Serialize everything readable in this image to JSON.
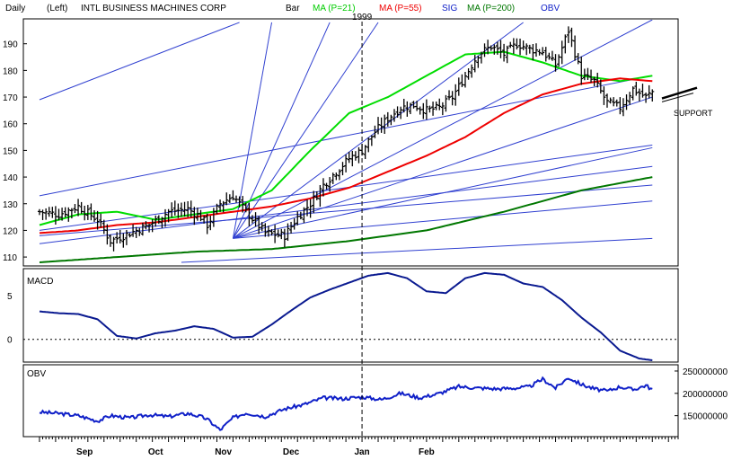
{
  "header": {
    "period": "Daily",
    "scale": "(Left)",
    "security": "INTL BUSINESS MACHINES CORP",
    "chart_style": "Bar",
    "ma21": "MA (P=21)",
    "ma55": "MA (P=55)",
    "sig": "SIG",
    "ma200": "MA (P=200)",
    "obv": "OBV"
  },
  "colors": {
    "ma21": "#00dd00",
    "ma55": "#ee0000",
    "ma200": "#007700",
    "blue": "#1020c8",
    "fan": "#3040d0",
    "bars": "#000000"
  },
  "annotations": {
    "year": "1999",
    "support": "SUPPORT"
  },
  "chart_data": [
    {
      "type": "bar",
      "title": "",
      "ylim": [
        107,
        199
      ],
      "yticks": [
        "110",
        "120",
        "130",
        "140",
        "150",
        "160",
        "170",
        "180",
        "190"
      ],
      "ytick_values": [
        110,
        120,
        130,
        140,
        150,
        160,
        170,
        180,
        190
      ],
      "series": [
        {
          "name": "MA (P=21)",
          "x": [
            0,
            12,
            24,
            36,
            48,
            60,
            72,
            84,
            96,
            108,
            120,
            132,
            144,
            156,
            168,
            180,
            190
          ],
          "values": [
            122,
            126,
            127,
            124,
            126,
            128,
            135,
            150,
            164,
            170,
            178,
            186,
            187,
            183,
            178,
            176,
            178
          ]
        },
        {
          "name": "MA (P=55)",
          "x": [
            0,
            12,
            24,
            36,
            48,
            60,
            72,
            84,
            96,
            108,
            120,
            132,
            144,
            156,
            168,
            180,
            190
          ],
          "values": [
            119,
            120,
            122,
            123,
            125,
            127,
            129,
            132,
            136,
            142,
            148,
            155,
            164,
            171,
            175,
            177,
            176
          ]
        },
        {
          "name": "MA (P=200)",
          "x": [
            0,
            24,
            48,
            72,
            96,
            120,
            144,
            168,
            190
          ],
          "values": [
            108,
            110,
            112,
            113,
            116,
            120,
            127,
            135,
            140
          ]
        }
      ],
      "price_anchors": {
        "x": [
          0,
          6,
          12,
          18,
          22,
          28,
          34,
          40,
          46,
          50,
          52,
          56,
          60,
          64,
          70,
          76,
          80,
          84,
          88,
          92,
          96,
          100,
          104,
          108,
          112,
          116,
          120,
          124,
          128,
          132,
          136,
          140,
          144,
          148,
          152,
          156,
          160,
          164,
          168,
          172,
          176,
          180,
          184,
          188,
          190
        ],
        "close": [
          127,
          126,
          129,
          124,
          116,
          119,
          122,
          127,
          128,
          125,
          122,
          130,
          133,
          127,
          119,
          118,
          125,
          130,
          137,
          142,
          147,
          150,
          157,
          162,
          166,
          167,
          165,
          166,
          170,
          178,
          186,
          189,
          186,
          190,
          188,
          187,
          182,
          195,
          178,
          176,
          168,
          166,
          173,
          170,
          172
        ]
      },
      "fan_lines": [
        {
          "x1": 0,
          "y1": 169,
          "x2": 62,
          "y2": 198
        },
        {
          "x1": 0,
          "y1": 133,
          "x2": 190,
          "y2": 178
        },
        {
          "x1": 0,
          "y1": 120,
          "x2": 190,
          "y2": 152
        },
        {
          "x1": 0,
          "y1": 115,
          "x2": 190,
          "y2": 144
        },
        {
          "x1": 0,
          "y1": 118,
          "x2": 190,
          "y2": 137
        },
        {
          "x1": 44,
          "y1": 108,
          "x2": 190,
          "y2": 117
        },
        {
          "x1": 60,
          "y1": 117,
          "x2": 190,
          "y2": 170
        },
        {
          "x1": 60,
          "y1": 117,
          "x2": 190,
          "y2": 151
        },
        {
          "x1": 60,
          "y1": 117,
          "x2": 190,
          "y2": 131
        },
        {
          "x1": 60,
          "y1": 117,
          "x2": 72,
          "y2": 198
        },
        {
          "x1": 60,
          "y1": 117,
          "x2": 90,
          "y2": 198
        },
        {
          "x1": 60,
          "y1": 117,
          "x2": 105,
          "y2": 198
        },
        {
          "x1": 60,
          "y1": 117,
          "x2": 150,
          "y2": 198
        },
        {
          "x1": 60,
          "y1": 117,
          "x2": 190,
          "y2": 199
        }
      ]
    },
    {
      "type": "line",
      "title": "MACD",
      "ylim": [
        -2.5,
        8
      ],
      "yticks": [
        "5",
        "0"
      ],
      "ytick_values": [
        5,
        0
      ],
      "zero_line": 0,
      "series": [
        {
          "name": "MACD",
          "x": [
            0,
            6,
            12,
            18,
            24,
            30,
            36,
            42,
            48,
            54,
            60,
            66,
            72,
            78,
            84,
            90,
            96,
            102,
            108,
            114,
            120,
            126,
            132,
            138,
            144,
            150,
            156,
            162,
            168,
            174,
            180,
            186,
            190
          ],
          "values": [
            3.2,
            3.0,
            2.9,
            2.3,
            0.4,
            0.1,
            0.7,
            1.0,
            1.5,
            1.2,
            0.2,
            0.3,
            1.7,
            3.3,
            4.8,
            5.7,
            6.5,
            7.3,
            7.6,
            7.0,
            5.5,
            5.3,
            7.0,
            7.6,
            7.4,
            6.4,
            6.0,
            4.5,
            2.5,
            0.8,
            -1.3,
            -2.2,
            -2.4
          ]
        }
      ]
    },
    {
      "type": "line",
      "title": "OBV",
      "ylim": [
        105000000,
        262000000
      ],
      "yticks": [
        "250000000",
        "200000000",
        "150000000"
      ],
      "ytick_values": [
        250000000,
        200000000,
        150000000
      ],
      "series": [
        {
          "name": "OBV",
          "x": [
            0,
            6,
            12,
            18,
            22,
            28,
            34,
            40,
            46,
            50,
            52,
            56,
            60,
            64,
            70,
            76,
            82,
            88,
            94,
            100,
            106,
            112,
            118,
            124,
            130,
            136,
            142,
            148,
            152,
            156,
            160,
            164,
            168,
            172,
            176,
            180,
            184,
            188,
            190
          ],
          "values": [
            158000000,
            155000000,
            150000000,
            138000000,
            150000000,
            145000000,
            152000000,
            148000000,
            155000000,
            148000000,
            142000000,
            118000000,
            145000000,
            156000000,
            148000000,
            165000000,
            175000000,
            190000000,
            188000000,
            192000000,
            186000000,
            200000000,
            190000000,
            200000000,
            215000000,
            212000000,
            210000000,
            212000000,
            215000000,
            232000000,
            212000000,
            235000000,
            220000000,
            210000000,
            205000000,
            215000000,
            208000000,
            218000000,
            208000000
          ]
        }
      ]
    }
  ],
  "x_axis": {
    "months": [
      "Sep",
      "Oct",
      "Nov",
      "Dec",
      "Jan",
      "Feb"
    ],
    "month_x": [
      14,
      36,
      57,
      78,
      100,
      120
    ],
    "year_marker_x": 100,
    "x_range": [
      -5,
      198
    ]
  }
}
